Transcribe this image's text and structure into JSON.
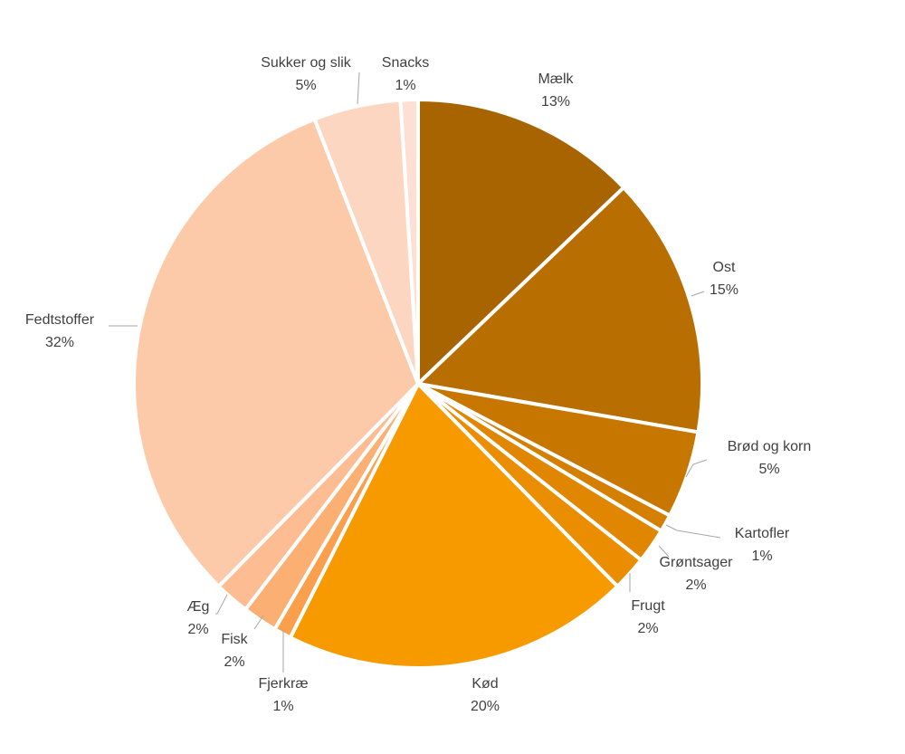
{
  "chart_data": {
    "type": "pie",
    "title": "",
    "start_angle_deg": 0,
    "direction": "clockwise",
    "legend": "none",
    "slices": [
      {
        "label": "Mælk",
        "value": 13,
        "pct_label": "13%",
        "color": "#a86400"
      },
      {
        "label": "Ost",
        "value": 15,
        "pct_label": "15%",
        "color": "#b86e00"
      },
      {
        "label": "Brød og korn",
        "value": 5,
        "pct_label": "5%",
        "color": "#c77700"
      },
      {
        "label": "Kartofler",
        "value": 1,
        "pct_label": "1%",
        "color": "#d47f00"
      },
      {
        "label": "Grøntsager",
        "value": 2,
        "pct_label": "2%",
        "color": "#e08600"
      },
      {
        "label": "Frugt",
        "value": 2,
        "pct_label": "2%",
        "color": "#eb8d00"
      },
      {
        "label": "Kød",
        "value": 20,
        "pct_label": "20%",
        "color": "#f79a00"
      },
      {
        "label": "Fjerkræ",
        "value": 1,
        "pct_label": "1%",
        "color": "#faa04c"
      },
      {
        "label": "Fisk",
        "value": 2,
        "pct_label": "2%",
        "color": "#fcaf72"
      },
      {
        "label": "Æg",
        "value": 2,
        "pct_label": "2%",
        "color": "#fdbc91"
      },
      {
        "label": "Fedtstoffer",
        "value": 32,
        "pct_label": "32%",
        "color": "#fdcaa9"
      },
      {
        "label": "Sukker og slik",
        "value": 5,
        "pct_label": "5%",
        "color": "#fdd6c1"
      },
      {
        "label": "Snacks",
        "value": 1,
        "pct_label": "1%",
        "color": "#fde0d3"
      }
    ]
  }
}
